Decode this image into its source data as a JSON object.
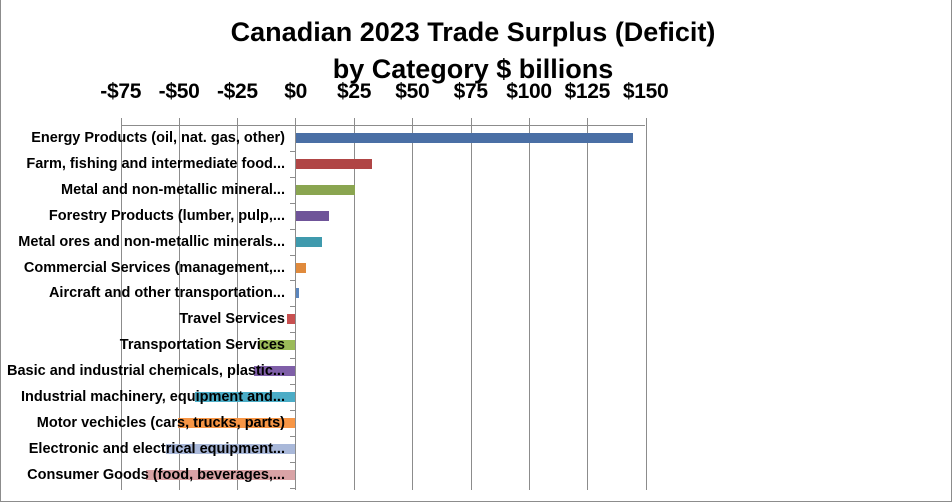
{
  "chart_data": {
    "type": "bar",
    "orientation": "horizontal",
    "title": "Canadian 2023 Trade Surplus (Deficit)",
    "subtitle": "by Category $ billions",
    "xlabel": "",
    "ylabel": "",
    "xlim": [
      -75,
      150
    ],
    "x_ticks": [
      "-$75",
      "-$50",
      "-$25",
      "$0",
      "$25",
      "$50",
      "$75",
      "$100",
      "$125",
      "$150"
    ],
    "x_tick_values": [
      -75,
      -50,
      -25,
      0,
      25,
      50,
      75,
      100,
      125,
      150
    ],
    "x_axis_position": "top",
    "grid": true,
    "legend": false,
    "categories": [
      "Energy Products (oil, nat. gas, other)",
      "Farm, fishing and intermediate food...",
      "Metal and non-metallic mineral...",
      "Forestry  Products (lumber, pulp,...",
      "Metal ores and non-metallic minerals...",
      "Commercial Services (management,...",
      "Aircraft and other transportation...",
      "Travel Services",
      "Transportation Services",
      "Basic and industrial chemicals, plastic...",
      "Industrial machinery, equipment and...",
      "Motor vechicles (cars, trucks, parts)",
      "Electronic and electrical equipment...",
      "Consumer Goods (food, beverages,..."
    ],
    "values": [
      144.6,
      32.6,
      25.6,
      14.3,
      11.2,
      4.4,
      1.3,
      -3.7,
      -15.6,
      -17.8,
      -43.2,
      -50.6,
      -55.5,
      -64.1
    ],
    "colors": [
      "#4a6fa5",
      "#b04545",
      "#8aa550",
      "#6f5499",
      "#3f9aad",
      "#e08a3c",
      "#5a85bd",
      "#c85050",
      "#9bbb59",
      "#7f5fa8",
      "#4bacc6",
      "#f79646",
      "#a9b8d9",
      "#d9a3a6"
    ]
  }
}
